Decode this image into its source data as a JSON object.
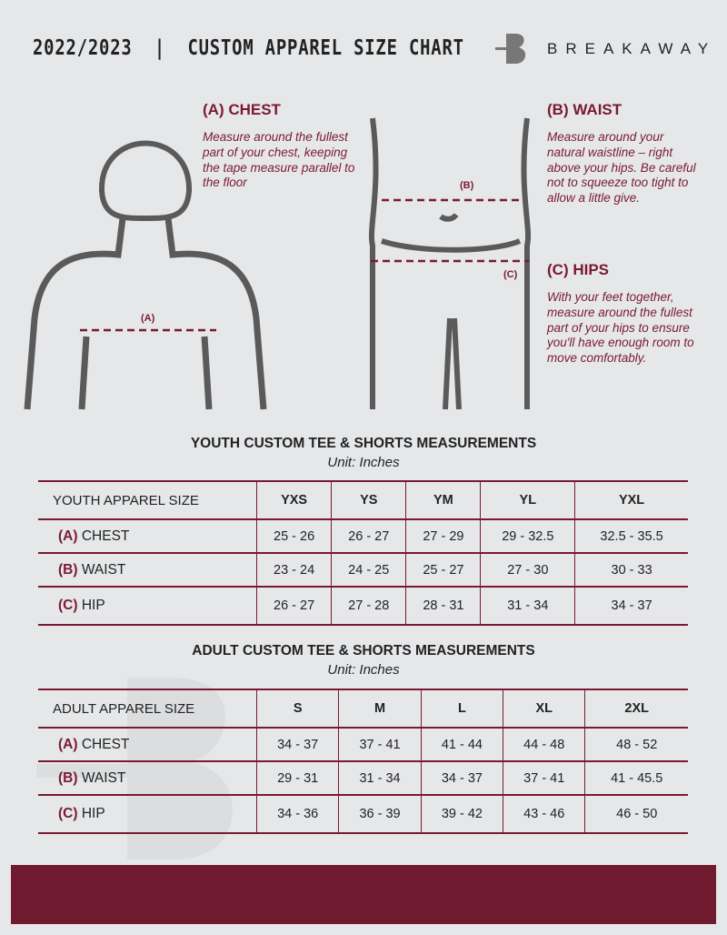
{
  "header": {
    "title": "2022/2023  |  CUSTOM APPAREL SIZE CHART",
    "brand": "BREAKAWAY",
    "brand_mark": "B"
  },
  "colors": {
    "accent": "#7a1a31",
    "footer": "#701a2f",
    "background": "#e6e7e9"
  },
  "guide": {
    "chest": {
      "title": "(A) CHEST",
      "desc": "Measure around the fullest part of your chest, keeping the tape measure parallel to the floor",
      "marker": "(A)"
    },
    "waist": {
      "title": "(B) WAIST",
      "desc": "Measure around your natural waistline – right above your hips. Be careful not to squeeze too tight to allow a little give.",
      "marker": "(B)"
    },
    "hips": {
      "title": "(C) HIPS",
      "desc": "With your feet together, measure around the fullest part of your hips to ensure you'll have enough room to move comfortably.",
      "marker": "(C)"
    }
  },
  "youth": {
    "title": "YOUTH CUSTOM TEE & SHORTS MEASUREMENTS",
    "unit": "Unit: Inches",
    "size_label": "YOUTH APPAREL SIZE",
    "sizes": [
      "YXS",
      "YS",
      "YM",
      "YL",
      "YXL"
    ],
    "rows": [
      {
        "letter": "(A)",
        "name": "CHEST",
        "values": [
          "25 - 26",
          "26 - 27",
          "27 - 29",
          "29 - 32.5",
          "32.5 - 35.5"
        ]
      },
      {
        "letter": "(B)",
        "name": "WAIST",
        "values": [
          "23 - 24",
          "24 - 25",
          "25 - 27",
          "27 - 30",
          "30 - 33"
        ]
      },
      {
        "letter": "(C)",
        "name": "HIP",
        "values": [
          "26 - 27",
          "27 - 28",
          "28 - 31",
          "31 - 34",
          "34 - 37"
        ]
      }
    ]
  },
  "adult": {
    "title": "ADULT CUSTOM TEE & SHORTS MEASUREMENTS",
    "unit": "Unit: Inches",
    "size_label": "ADULT APPAREL SIZE",
    "sizes": [
      "S",
      "M",
      "L",
      "XL",
      "2XL"
    ],
    "rows": [
      {
        "letter": "(A)",
        "name": "CHEST",
        "values": [
          "34 - 37",
          "37 - 41",
          "41 - 44",
          "44 - 48",
          "48 - 52"
        ]
      },
      {
        "letter": "(B)",
        "name": "WAIST",
        "values": [
          "29 - 31",
          "31 - 34",
          "34 - 37",
          "37 - 41",
          "41 - 45.5"
        ]
      },
      {
        "letter": "(C)",
        "name": "HIP",
        "values": [
          "34 - 36",
          "36 - 39",
          "39 - 42",
          "43 - 46",
          "46 - 50"
        ]
      }
    ]
  }
}
